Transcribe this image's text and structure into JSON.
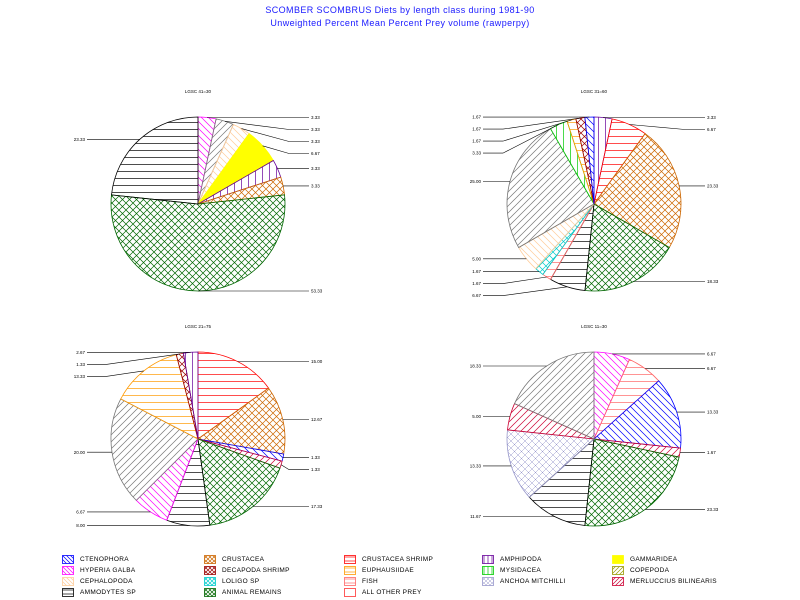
{
  "title": "SCOMBER SCOMBRUS Diets by length class during 1981-90",
  "subtitle": "Unweighted Percent Mean Percent Prey  volume (rawperpy)",
  "categories": [
    {
      "key": "CTENOPHORA",
      "label": "CTENOPHORA",
      "color": "#0000ff",
      "pattern": "diag-back"
    },
    {
      "key": "CRUSTACEA",
      "label": "CRUSTACEA",
      "color": "#cc6600",
      "pattern": "cross"
    },
    {
      "key": "CRUSTACEA_SHRIMP",
      "label": "CRUSTACEA SHRIMP",
      "color": "#ff0000",
      "pattern": "horiz"
    },
    {
      "key": "AMPHIPODA",
      "label": "AMPHIPODA",
      "color": "#660099",
      "pattern": "vert"
    },
    {
      "key": "GAMMARIDEA",
      "label": "GAMMARIDEA",
      "color": "#ffff00",
      "pattern": "solid"
    },
    {
      "key": "HYPERIA_GALBA",
      "label": "HYPERIA GALBA",
      "color": "#ff00ff",
      "pattern": "diag-back"
    },
    {
      "key": "DECAPODA_SHRIMP",
      "label": "DECAPODA SHRIMP",
      "color": "#990000",
      "pattern": "cross"
    },
    {
      "key": "EUPHAUSIIDAE",
      "label": "EUPHAUSIIDAE",
      "color": "#ff9900",
      "pattern": "horiz"
    },
    {
      "key": "MYSIDACEA",
      "label": "MYSIDACEA",
      "color": "#00cc00",
      "pattern": "vert"
    },
    {
      "key": "COPEPODA",
      "label": "COPEPODA",
      "color": "#999900",
      "pattern": "diag"
    },
    {
      "key": "CEPHALOPODA",
      "label": "CEPHALOPODA",
      "color": "#ffcc99",
      "pattern": "diag-back"
    },
    {
      "key": "LOLIGO_SP",
      "label": "LOLIGO SP",
      "color": "#00cccc",
      "pattern": "cross"
    },
    {
      "key": "FISH",
      "label": "FISH",
      "color": "#ff6666",
      "pattern": "horiz"
    },
    {
      "key": "ANCHOA_MITCHILLI",
      "label": "ANCHOA MITCHILLI",
      "color": "#9999cc",
      "pattern": "cross-light"
    },
    {
      "key": "MERLUCCIUS_BILINEARIS",
      "label": "MERLUCCIUS BILINEARIS",
      "color": "#cc0033",
      "pattern": "diag"
    },
    {
      "key": "AMMODYTES_SP",
      "label": "AMMODYTES SP",
      "color": "#000000",
      "pattern": "horiz"
    },
    {
      "key": "ANIMAL_REMAINS",
      "label": "ANIMAL REMAINS",
      "color": "#006600",
      "pattern": "cross"
    },
    {
      "key": "ALL_OTHER_PREY",
      "label": "ALL OTHER PREY",
      "color": "#ff3333",
      "pattern": "none"
    },
    {
      "key": "OTHER_DIAG",
      "label": "",
      "color": "#777777",
      "pattern": "diag"
    }
  ],
  "chart_data": [
    {
      "type": "pie",
      "title": "LGSC 41=30",
      "slices": [
        {
          "category": "HYPERIA_GALBA",
          "value": 3.33,
          "label": "3.33"
        },
        {
          "category": "OTHER_DIAG",
          "value": 3.33,
          "label": "3.33"
        },
        {
          "category": "CEPHALOPODA",
          "value": 3.33,
          "label": "3.33"
        },
        {
          "category": "GAMMARIDEA",
          "value": 6.67,
          "label": "6.67"
        },
        {
          "category": "AMPHIPODA",
          "value": 3.33,
          "label": "3.33"
        },
        {
          "category": "CRUSTACEA",
          "value": 3.33,
          "label": "3.33"
        },
        {
          "category": "ANIMAL_REMAINS",
          "value": 53.33,
          "label": "53.33"
        },
        {
          "category": "AMMODYTES_SP",
          "value": 23.33,
          "label": "23.33"
        }
      ]
    },
    {
      "type": "pie",
      "title": "LGSC 31=60",
      "slices": [
        {
          "category": "AMPHIPODA",
          "value": 3.33,
          "label": "3.33"
        },
        {
          "category": "CRUSTACEA_SHRIMP",
          "value": 6.67,
          "label": "6.67"
        },
        {
          "category": "CRUSTACEA",
          "value": 23.33,
          "label": "23.33"
        },
        {
          "category": "ANIMAL_REMAINS",
          "value": 18.33,
          "label": "18.33"
        },
        {
          "category": "AMMODYTES_SP",
          "value": 6.67,
          "label": "6.67"
        },
        {
          "category": "FISH",
          "value": 1.67,
          "label": "1.67"
        },
        {
          "category": "LOLIGO_SP",
          "value": 1.67,
          "label": "1.67"
        },
        {
          "category": "CEPHALOPODA",
          "value": 5.0,
          "label": "5.00"
        },
        {
          "category": "OTHER_DIAG",
          "value": 25.0,
          "label": "25.00"
        },
        {
          "category": "MYSIDACEA",
          "value": 3.33,
          "label": "3.33"
        },
        {
          "category": "EUPHAUSIIDAE",
          "value": 1.67,
          "label": "1.67"
        },
        {
          "category": "DECAPODA_SHRIMP",
          "value": 1.67,
          "label": "1.67"
        },
        {
          "category": "CTENOPHORA",
          "value": 1.67,
          "label": "1.67"
        }
      ]
    },
    {
      "type": "pie",
      "title": "LGSC 21=75",
      "slices": [
        {
          "category": "CRUSTACEA_SHRIMP",
          "value": 15.0,
          "label": "15.00"
        },
        {
          "category": "CRUSTACEA",
          "value": 12.67,
          "label": "12.67"
        },
        {
          "category": "CTENOPHORA",
          "value": 1.33,
          "label": "1.33"
        },
        {
          "category": "MERLUCCIUS_BILINEARIS",
          "value": 1.33,
          "label": "1.33"
        },
        {
          "category": "ANIMAL_REMAINS",
          "value": 17.33,
          "label": "17.33"
        },
        {
          "category": "AMMODYTES_SP",
          "value": 8.0,
          "label": "8.00"
        },
        {
          "category": "HYPERIA_GALBA",
          "value": 6.67,
          "label": "6.67"
        },
        {
          "category": "OTHER_DIAG",
          "value": 20.0,
          "label": "20.00"
        },
        {
          "category": "EUPHAUSIIDAE",
          "value": 13.33,
          "label": "13.33"
        },
        {
          "category": "DECAPODA_SHRIMP",
          "value": 1.33,
          "label": "1.33"
        },
        {
          "category": "AMPHIPODA",
          "value": 2.67,
          "label": "2.67"
        }
      ]
    },
    {
      "type": "pie",
      "title": "LGSC 11=30",
      "slices": [
        {
          "category": "HYPERIA_GALBA",
          "value": 6.67,
          "label": "6.67"
        },
        {
          "category": "FISH",
          "value": 6.67,
          "label": "6.67"
        },
        {
          "category": "CTENOPHORA",
          "value": 13.33,
          "label": "13.33"
        },
        {
          "category": "MERLUCCIUS_BILINEARIS",
          "value": 1.67,
          "label": "1.67"
        },
        {
          "category": "ANIMAL_REMAINS",
          "value": 23.33,
          "label": "23.33"
        },
        {
          "category": "AMMODYTES_SP",
          "value": 11.67,
          "label": "11.67"
        },
        {
          "category": "ANCHOA_MITCHILLI",
          "value": 13.33,
          "label": "13.33"
        },
        {
          "category": "MERLUCCIUS_BILINEARIS",
          "value": 5.0,
          "label": "5.00"
        },
        {
          "category": "OTHER_DIAG",
          "value": 18.33,
          "label": "18.33"
        }
      ]
    }
  ]
}
